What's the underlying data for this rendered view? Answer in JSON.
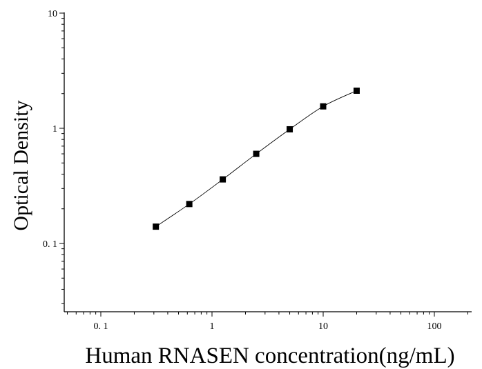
{
  "chart_data": {
    "type": "scatter",
    "title": "",
    "xlabel": "Human RNASEN concentration(ng/mL)",
    "ylabel": "Optical Density",
    "x_scale": "log",
    "y_scale": "log",
    "xlim": [
      0.05,
      190
    ],
    "ylim": [
      0.03,
      10
    ],
    "x_ticks": [
      {
        "value": 0.1,
        "label": "0. 1"
      },
      {
        "value": 1,
        "label": "1"
      },
      {
        "value": 10,
        "label": "10"
      },
      {
        "value": 100,
        "label": "100"
      }
    ],
    "y_ticks": [
      {
        "value": 0.1,
        "label": "0. 1"
      },
      {
        "value": 1,
        "label": "1"
      },
      {
        "value": 10,
        "label": "10"
      }
    ],
    "grid": false,
    "legend": "none",
    "series": [
      {
        "marker": "square",
        "color": "#000000",
        "fit_curve": true,
        "points": [
          {
            "x": 0.3125,
            "y": 0.14
          },
          {
            "x": 0.625,
            "y": 0.22
          },
          {
            "x": 1.25,
            "y": 0.36
          },
          {
            "x": 2.5,
            "y": 0.6
          },
          {
            "x": 5,
            "y": 0.98
          },
          {
            "x": 10,
            "y": 1.55
          },
          {
            "x": 20,
            "y": 2.12
          }
        ]
      }
    ]
  }
}
